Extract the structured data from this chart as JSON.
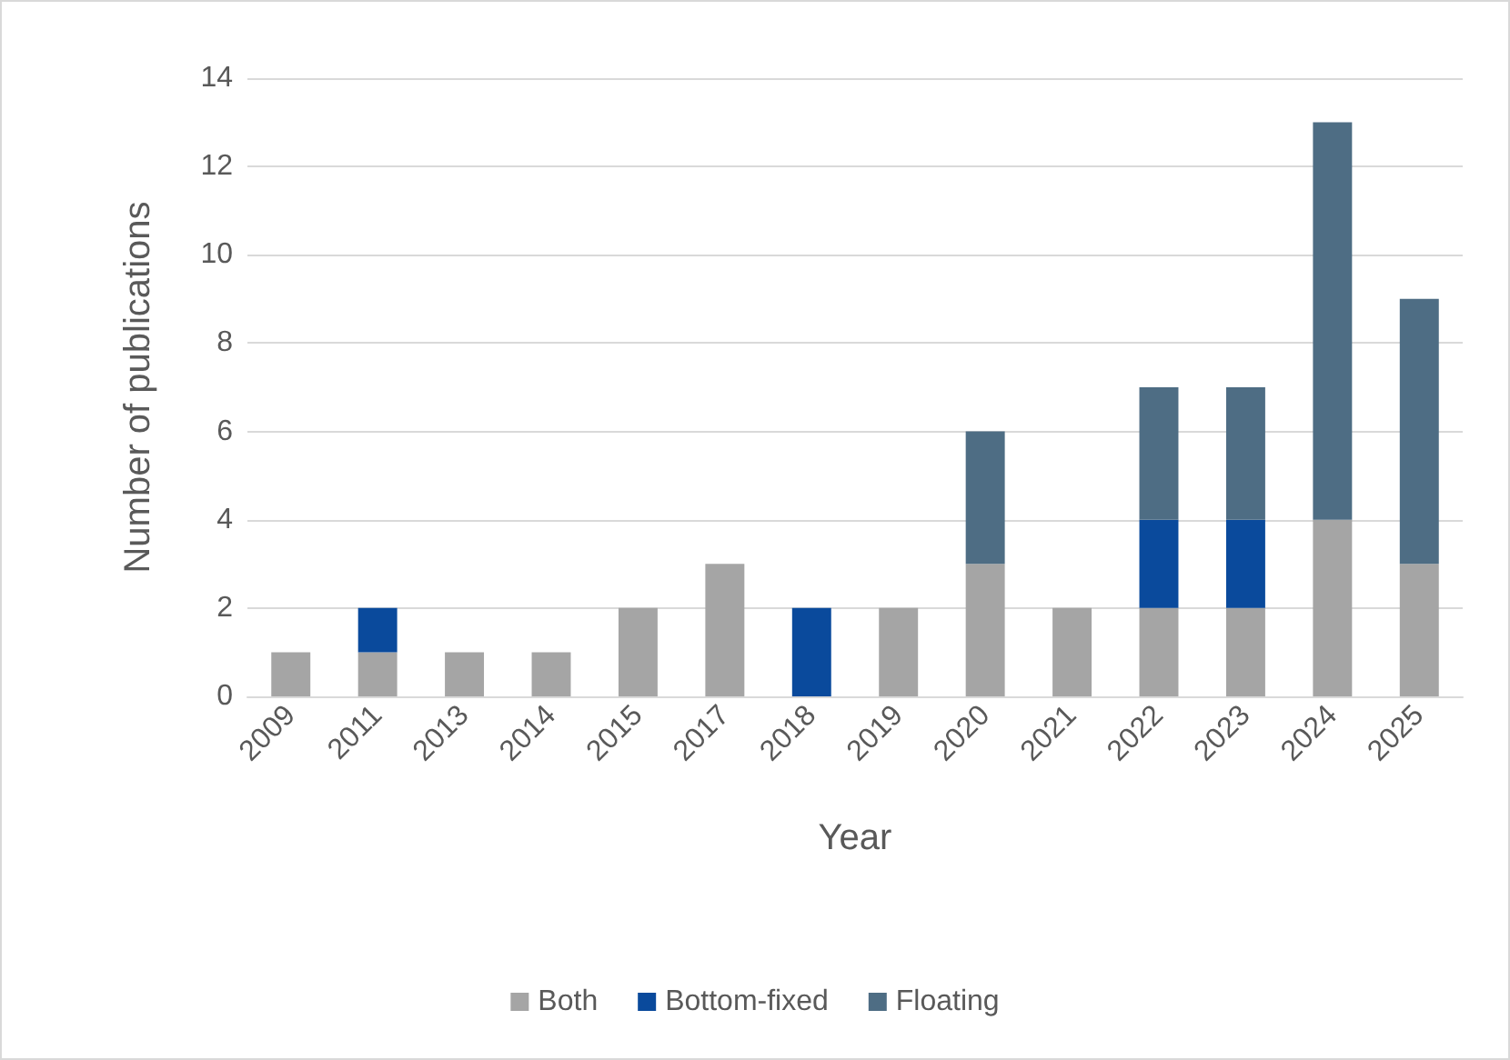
{
  "chart_data": {
    "type": "bar",
    "stacked": true,
    "xlabel": "Year",
    "ylabel": "Number of publications",
    "categories": [
      "2009",
      "2011",
      "2013",
      "2014",
      "2015",
      "2017",
      "2018",
      "2019",
      "2020",
      "2021",
      "2022",
      "2023",
      "2024",
      "2025"
    ],
    "series": [
      {
        "name": "Both",
        "color": "#a5a5a5",
        "values": [
          1,
          1,
          1,
          1,
          2,
          3,
          0,
          2,
          3,
          2,
          2,
          2,
          4,
          3
        ]
      },
      {
        "name": "Bottom-fixed",
        "color": "#0a4a9c",
        "values": [
          0,
          1,
          0,
          0,
          0,
          0,
          2,
          0,
          0,
          0,
          2,
          2,
          0,
          0
        ]
      },
      {
        "name": "Floating",
        "color": "#4e6d84",
        "values": [
          0,
          0,
          0,
          0,
          0,
          0,
          0,
          0,
          3,
          0,
          3,
          3,
          9,
          6
        ]
      }
    ],
    "ylim": [
      0,
      14
    ],
    "yticks": [
      0,
      2,
      4,
      6,
      8,
      10,
      12,
      14
    ],
    "grid": "y",
    "legend": "bottom"
  }
}
